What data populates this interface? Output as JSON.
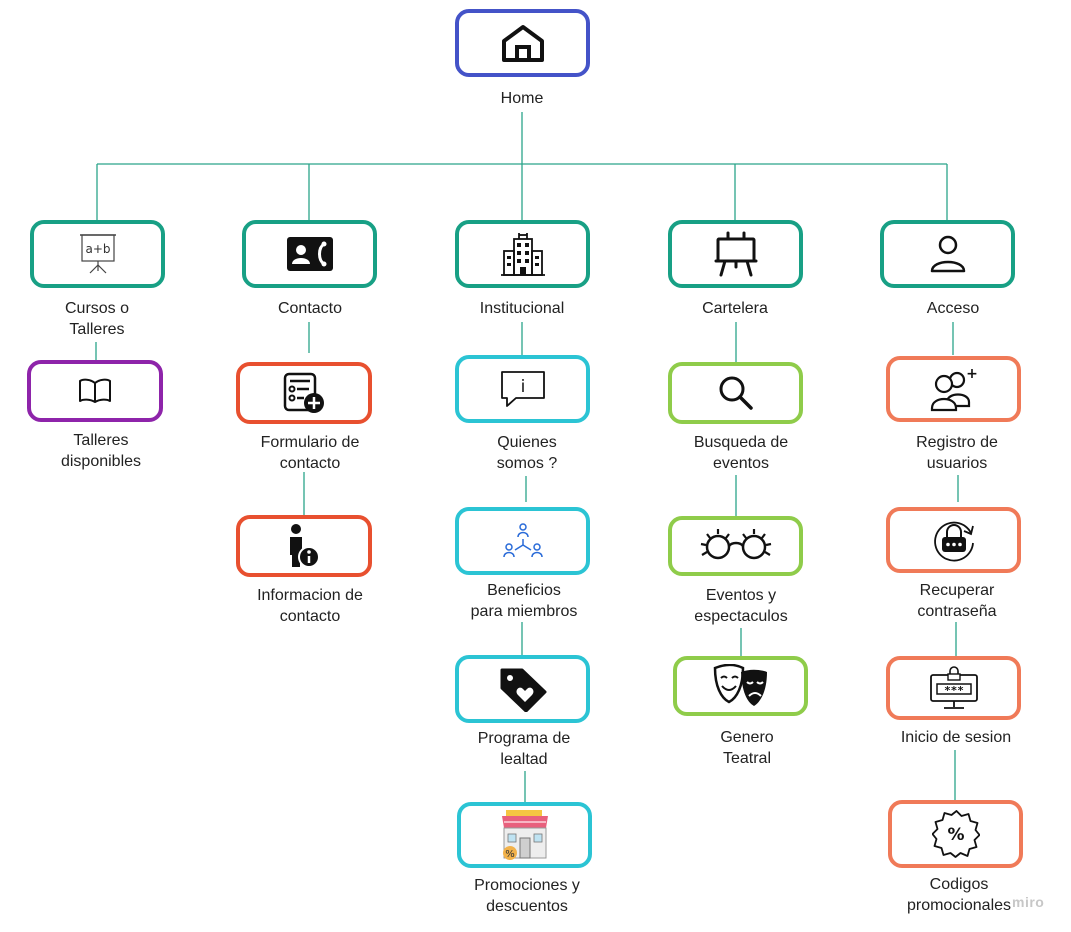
{
  "colors": {
    "connector": "#2ba58a",
    "home": "#4453c8",
    "section": "#18a085",
    "talleres": "#8e24aa",
    "contacto": "#e8502f",
    "institucional": "#2bc4d4",
    "cartelera": "#8fcc4a",
    "acceso": "#f07a58"
  },
  "home": {
    "label": "Home",
    "icon": "house-icon"
  },
  "sections": [
    {
      "label": "Cursos o\nTalleres",
      "icon": "presentation-board-icon",
      "board_text": "a+b",
      "children": [
        {
          "label": "Talleres\ndisponibles",
          "icon": "open-book-icon"
        }
      ]
    },
    {
      "label": "Contacto",
      "icon": "contact-card-icon",
      "children": [
        {
          "label": "Formulario de\ncontacto",
          "icon": "form-add-icon"
        },
        {
          "label": "Informacion de\ncontacto",
          "icon": "person-info-icon"
        }
      ]
    },
    {
      "label": "Institucional",
      "icon": "building-icon",
      "children": [
        {
          "label": "Quienes\nsomos ?",
          "icon": "info-chat-icon",
          "glyph": "i"
        },
        {
          "label": "Beneficios\npara miembros",
          "icon": "members-network-icon"
        },
        {
          "label": "Programa de\nlealtad",
          "icon": "heart-tag-icon"
        },
        {
          "label": "Promociones y\ndescuentos",
          "icon": "shop-discount-icon",
          "badge": "%"
        }
      ]
    },
    {
      "label": "Cartelera",
      "icon": "easel-icon",
      "children": [
        {
          "label": "Busqueda de\neventos",
          "icon": "magnifier-icon"
        },
        {
          "label": "Eventos y\nespectaculos",
          "icon": "glasses-icon"
        },
        {
          "label": "Genero\nTeatral",
          "icon": "theater-masks-icon"
        }
      ]
    },
    {
      "label": "Acceso",
      "icon": "user-icon",
      "children": [
        {
          "label": "Registro de\nusuarios",
          "icon": "add-users-icon",
          "glyph": "+"
        },
        {
          "label": "Recuperar\ncontraseña",
          "icon": "password-reset-icon"
        },
        {
          "label": "Inicio de sesion",
          "icon": "login-monitor-icon",
          "glyph": "***"
        },
        {
          "label": "Codigos\npromocionales",
          "icon": "percent-badge-icon",
          "glyph": "%"
        }
      ]
    }
  ],
  "watermark": "miro"
}
